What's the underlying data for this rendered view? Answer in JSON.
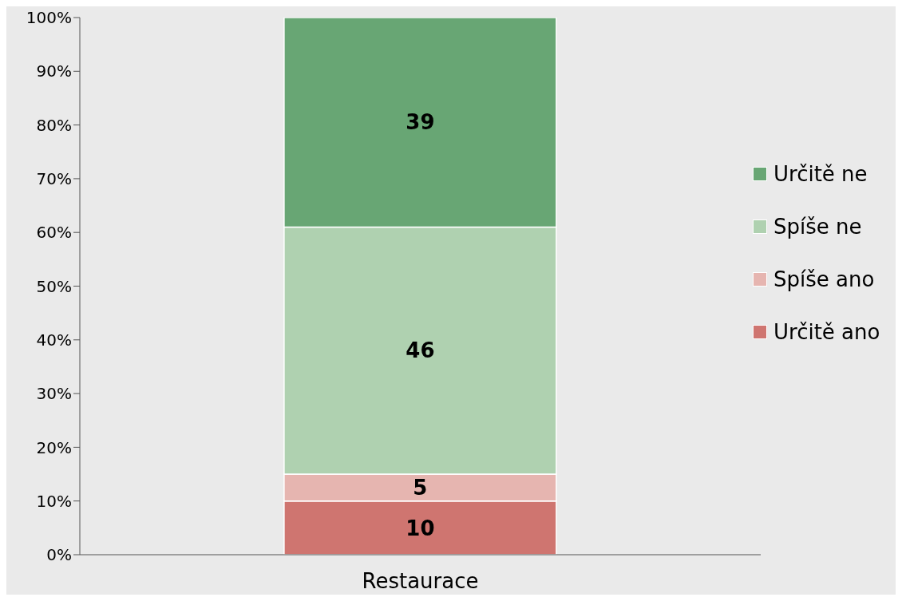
{
  "chart_data": {
    "type": "bar",
    "categories": [
      "Restaurace"
    ],
    "stacked": true,
    "data_labels": true,
    "grid": false,
    "legend": "right",
    "ylim": [
      0,
      100
    ],
    "yticks": [
      {
        "value": 0,
        "label": "0%"
      },
      {
        "value": 10,
        "label": "10%"
      },
      {
        "value": 20,
        "label": "20%"
      },
      {
        "value": 30,
        "label": "30%"
      },
      {
        "value": 40,
        "label": "40%"
      },
      {
        "value": 50,
        "label": "50%"
      },
      {
        "value": 60,
        "label": "60%"
      },
      {
        "value": 70,
        "label": "70%"
      },
      {
        "value": 80,
        "label": "80%"
      },
      {
        "value": 90,
        "label": "90%"
      },
      {
        "value": 100,
        "label": "100%"
      }
    ],
    "series": [
      {
        "name": "Určitě ano",
        "color": "#cf7570",
        "values": [
          10
        ]
      },
      {
        "name": "Spíše ano",
        "color": "#e6b5b0",
        "values": [
          5
        ]
      },
      {
        "name": "Spíše ne",
        "color": "#afd1b0",
        "values": [
          46
        ]
      },
      {
        "name": "Určitě ne",
        "color": "#68a674",
        "values": [
          39
        ]
      }
    ]
  }
}
